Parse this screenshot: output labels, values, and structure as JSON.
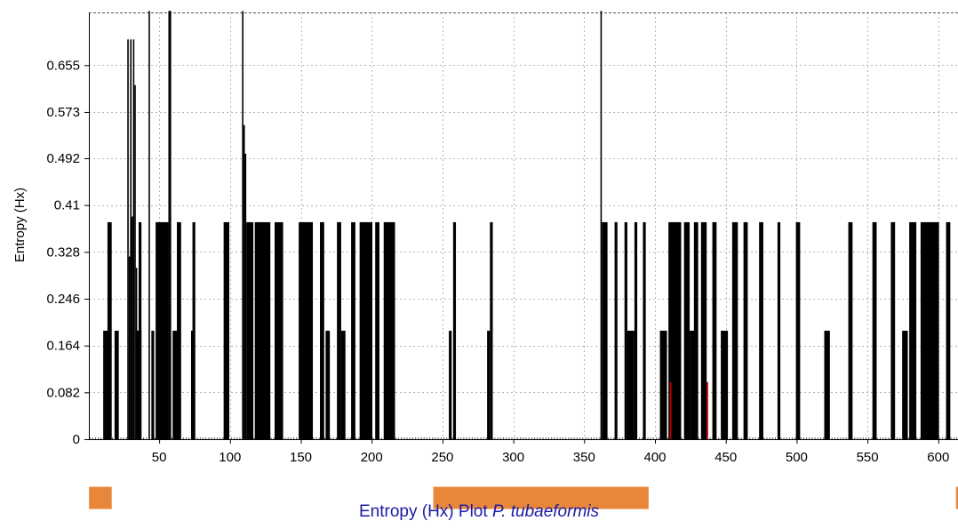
{
  "chart_data": {
    "type": "bar",
    "title": {
      "prefix": "Entropy (Hx) Plot",
      "italic": "P. tubaeformis"
    },
    "xlabel": "",
    "ylabel": "Entropy (Hx)",
    "xlim": [
      1,
      617
    ],
    "ylim": [
      0,
      0.75
    ],
    "x_ticks": [
      50,
      100,
      150,
      200,
      250,
      300,
      350,
      400,
      450,
      500,
      550,
      600
    ],
    "y_ticks": [
      "0",
      "0.082",
      "0.164",
      "0.246",
      "0.328",
      "0.41",
      "0.492",
      "0.573",
      "0.655"
    ],
    "grid": true,
    "colors": {
      "bars": "#000000",
      "highlight_bars": "#c00000",
      "regions": "#e8873a",
      "title": "#1a1aa8",
      "grid": "#b4b4b4"
    },
    "levels": {
      "low": 0.19,
      "high": 0.38
    },
    "low_runs": [
      [
        11,
        14
      ],
      [
        19,
        21
      ],
      [
        34,
        37
      ],
      [
        45,
        46
      ],
      [
        60,
        63
      ],
      [
        73,
        74
      ],
      [
        98,
        99
      ],
      [
        123,
        125
      ],
      [
        133,
        134
      ],
      [
        168,
        170
      ],
      [
        179,
        181
      ],
      [
        194,
        195
      ],
      [
        255,
        256
      ],
      [
        282,
        283
      ],
      [
        381,
        385
      ],
      [
        404,
        408
      ],
      [
        425,
        428
      ],
      [
        447,
        451
      ],
      [
        520,
        523
      ],
      [
        575,
        578
      ]
    ],
    "high_runs": [
      [
        14,
        16
      ],
      [
        30,
        31
      ],
      [
        36,
        37
      ],
      [
        48,
        56
      ],
      [
        63,
        65
      ],
      [
        74,
        75
      ],
      [
        96,
        99
      ],
      [
        112,
        116
      ],
      [
        118,
        128
      ],
      [
        132,
        137
      ],
      [
        149,
        158
      ],
      [
        164,
        166
      ],
      [
        176,
        178
      ],
      [
        186,
        188
      ],
      [
        192,
        200
      ],
      [
        203,
        205
      ],
      [
        209,
        216
      ],
      [
        258,
        259
      ],
      [
        284,
        285
      ],
      [
        363,
        366
      ],
      [
        372,
        373
      ],
      [
        379,
        380
      ],
      [
        386,
        387
      ],
      [
        392,
        393
      ],
      [
        410,
        418
      ],
      [
        421,
        424
      ],
      [
        428,
        430
      ],
      [
        433,
        436
      ],
      [
        441,
        443
      ],
      [
        455,
        458
      ],
      [
        463,
        465
      ],
      [
        474,
        476
      ],
      [
        487,
        488
      ],
      [
        500,
        502
      ],
      [
        537,
        539
      ],
      [
        554,
        556
      ],
      [
        567,
        569
      ],
      [
        580,
        584
      ],
      [
        588,
        600
      ],
      [
        606,
        608
      ]
    ],
    "spikes": [
      {
        "x": 28,
        "value": 0.7
      },
      {
        "x": 29,
        "value": 0.32
      },
      {
        "x": 30,
        "value": 0.7
      },
      {
        "x": 31,
        "value": 0.39
      },
      {
        "x": 32,
        "value": 0.7
      },
      {
        "x": 33,
        "value": 0.62
      },
      {
        "x": 34,
        "value": 0.3
      },
      {
        "x": 43,
        "value": 0.75
      },
      {
        "x": 57,
        "value": 0.75
      },
      {
        "x": 58,
        "value": 0.75
      },
      {
        "x": 109,
        "value": 0.75
      },
      {
        "x": 110,
        "value": 0.55
      },
      {
        "x": 111,
        "value": 0.5
      },
      {
        "x": 362,
        "value": 0.75
      },
      {
        "x": 435,
        "value": 0.28
      }
    ],
    "highlight_spikes": [
      {
        "x": 411,
        "value": 0.1
      },
      {
        "x": 437,
        "value": 0.1
      }
    ],
    "regions": [
      {
        "start": 1,
        "end": 16
      },
      {
        "start": 244,
        "end": 395
      },
      {
        "start": 613,
        "end": 617
      }
    ]
  }
}
